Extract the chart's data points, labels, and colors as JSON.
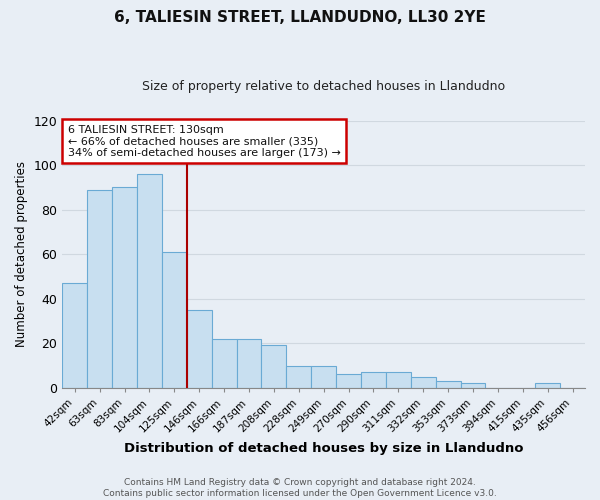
{
  "title": "6, TALIESIN STREET, LLANDUDNO, LL30 2YE",
  "subtitle": "Size of property relative to detached houses in Llandudno",
  "xlabel": "Distribution of detached houses by size in Llandudno",
  "ylabel": "Number of detached properties",
  "bar_labels": [
    "42sqm",
    "63sqm",
    "83sqm",
    "104sqm",
    "125sqm",
    "146sqm",
    "166sqm",
    "187sqm",
    "208sqm",
    "228sqm",
    "249sqm",
    "270sqm",
    "290sqm",
    "311sqm",
    "332sqm",
    "353sqm",
    "373sqm",
    "394sqm",
    "415sqm",
    "435sqm",
    "456sqm"
  ],
  "bar_values": [
    47,
    89,
    90,
    96,
    61,
    35,
    22,
    22,
    19,
    10,
    10,
    6,
    7,
    7,
    5,
    3,
    2,
    0,
    0,
    2,
    0
  ],
  "bar_color": "#c8dff0",
  "bar_edge_color": "#6aaad4",
  "vline_color": "#aa0000",
  "vline_index": 4,
  "annotation_lines": [
    "6 TALIESIN STREET: 130sqm",
    "← 66% of detached houses are smaller (335)",
    "34% of semi-detached houses are larger (173) →"
  ],
  "annotation_box_color": "#ffffff",
  "annotation_box_edge": "#cc0000",
  "ylim": [
    0,
    120
  ],
  "yticks": [
    0,
    20,
    40,
    60,
    80,
    100,
    120
  ],
  "footer_lines": [
    "Contains HM Land Registry data © Crown copyright and database right 2024.",
    "Contains public sector information licensed under the Open Government Licence v3.0."
  ],
  "bg_color": "#e8eef5",
  "grid_color": "#d0d8e0",
  "title_fontsize": 11,
  "subtitle_fontsize": 9,
  "ylabel_fontsize": 8.5,
  "xlabel_fontsize": 9.5
}
